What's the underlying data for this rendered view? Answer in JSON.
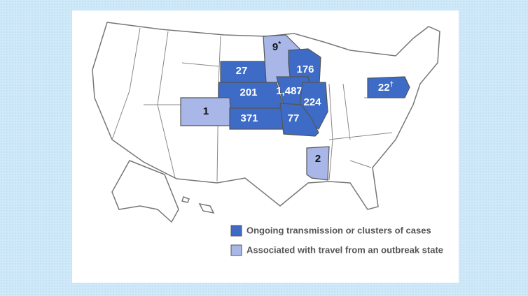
{
  "map": {
    "regions": [
      {
        "label": "27",
        "group": 0
      },
      {
        "label": "9",
        "note": "*",
        "group": 1
      },
      {
        "label": "176",
        "group": 0
      },
      {
        "label": "201",
        "group": 0
      },
      {
        "label": "1,487",
        "group": 0
      },
      {
        "label": "224",
        "group": 0
      },
      {
        "label": "1",
        "group": 1
      },
      {
        "label": "371",
        "group": 0
      },
      {
        "label": "77",
        "group": 0
      },
      {
        "label": "22",
        "note": "†",
        "group": 0
      },
      {
        "label": "2",
        "group": 1
      }
    ],
    "legend": [
      {
        "label": "Ongoing transmission or clusters of cases",
        "color": "#3d6bc6",
        "text_color": "#ffffff"
      },
      {
        "label": "Associated with travel from an outbreak state",
        "color": "#a8b7e8",
        "text_color": "#111111"
      }
    ]
  }
}
